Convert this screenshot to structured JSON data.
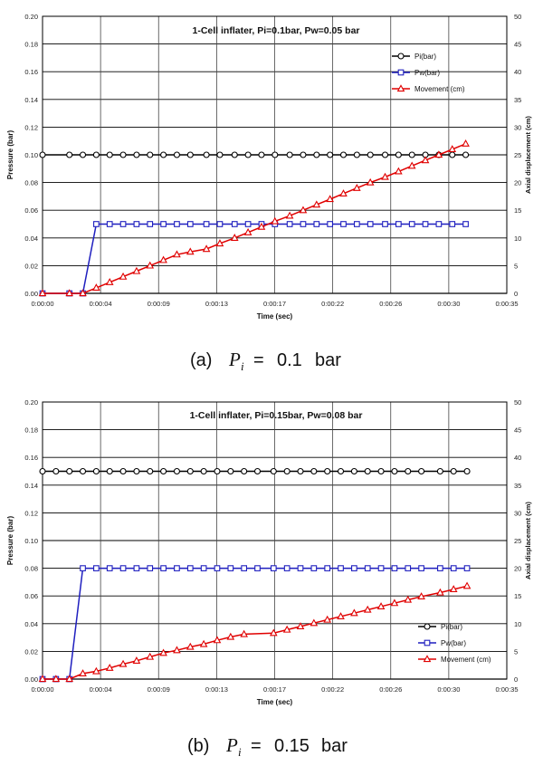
{
  "chart_data": [
    {
      "type": "line",
      "title": "1-Cell inflater, Pi=0.1bar, Pw=0.05 bar",
      "xlabel": "Time (sec)",
      "ylabel": "Pressure (bar)",
      "y2label": "Axial displacement (cm)",
      "x_ticks": [
        "0:00:00",
        "0:00:04",
        "0:00:09",
        "0:00:13",
        "0:00:17",
        "0:00:22",
        "0:00:26",
        "0:00:30",
        "0:00:35"
      ],
      "y_ticks": [
        "0.00",
        "0.02",
        "0.04",
        "0.06",
        "0.08",
        "0.10",
        "0.12",
        "0.14",
        "0.16",
        "0.18",
        "0.20"
      ],
      "y2_ticks": [
        "0",
        "5",
        "10",
        "15",
        "20",
        "25",
        "30",
        "35",
        "40",
        "45",
        "50"
      ],
      "xlim": [
        0,
        34.56
      ],
      "ylim": [
        0,
        0.2
      ],
      "y2lim": [
        0,
        50
      ],
      "grid": true,
      "legend_position": "top-right",
      "series": [
        {
          "name": "Pi(bar)",
          "axis": "left",
          "color": "#000000",
          "marker": "circle",
          "x": [
            0,
            2,
            3,
            4,
            5,
            6,
            7,
            8,
            9,
            10,
            11,
            12.2,
            13.2,
            14.3,
            15.3,
            16.3,
            17.3,
            18.4,
            19.4,
            20.4,
            21.4,
            22.4,
            23.4,
            24.4,
            25.5,
            26.5,
            27.5,
            28.5,
            29.5,
            30.5,
            31.5
          ],
          "y": [
            0.1,
            0.1,
            0.1,
            0.1,
            0.1,
            0.1,
            0.1,
            0.1,
            0.1,
            0.1,
            0.1,
            0.1,
            0.1,
            0.1,
            0.1,
            0.1,
            0.1,
            0.1,
            0.1,
            0.1,
            0.1,
            0.1,
            0.1,
            0.1,
            0.1,
            0.1,
            0.1,
            0.1,
            0.1,
            0.1,
            0.1
          ]
        },
        {
          "name": "Pw(bar)",
          "axis": "left",
          "color": "#1f1fbf",
          "marker": "square",
          "x": [
            0,
            2,
            3,
            4,
            5,
            6,
            7,
            8,
            9,
            10,
            11,
            12.2,
            13.2,
            14.3,
            15.3,
            16.3,
            17.3,
            18.4,
            19.4,
            20.4,
            21.4,
            22.4,
            23.4,
            24.4,
            25.5,
            26.5,
            27.5,
            28.5,
            29.5,
            30.5,
            31.5
          ],
          "y": [
            0,
            0,
            0,
            0.05,
            0.05,
            0.05,
            0.05,
            0.05,
            0.05,
            0.05,
            0.05,
            0.05,
            0.05,
            0.05,
            0.05,
            0.05,
            0.05,
            0.05,
            0.05,
            0.05,
            0.05,
            0.05,
            0.05,
            0.05,
            0.05,
            0.05,
            0.05,
            0.05,
            0.05,
            0.05,
            0.05
          ]
        },
        {
          "name": "Movement (cm)",
          "axis": "right",
          "color": "#e00000",
          "marker": "triangle",
          "x": [
            0,
            2,
            3,
            4,
            5,
            6,
            7,
            8,
            9,
            10,
            11,
            12.2,
            13.2,
            14.3,
            15.3,
            16.3,
            17.3,
            18.4,
            19.4,
            20.4,
            21.4,
            22.4,
            23.4,
            24.4,
            25.5,
            26.5,
            27.5,
            28.5,
            29.5,
            30.5,
            31.5
          ],
          "y": [
            0,
            0,
            0,
            1,
            2,
            3,
            4,
            5,
            6,
            7,
            7.5,
            8,
            9,
            10,
            11,
            12,
            13,
            14,
            15,
            16,
            17,
            18,
            19,
            20,
            21,
            22,
            23,
            24,
            25,
            26,
            27
          ]
        }
      ]
    },
    {
      "type": "line",
      "title": "1-Cell inflater, Pi=0.15bar, Pw=0.08 bar",
      "xlabel": "Time (sec)",
      "ylabel": "Pressure (bar)",
      "y2label": "Axial displacement (cm)",
      "x_ticks": [
        "0:00:00",
        "0:00:04",
        "0:00:09",
        "0:00:13",
        "0:00:17",
        "0:00:22",
        "0:00:26",
        "0:00:30",
        "0:00:35"
      ],
      "y_ticks": [
        "0.00",
        "0.02",
        "0.04",
        "0.06",
        "0.08",
        "0.10",
        "0.12",
        "0.14",
        "0.16",
        "0.18",
        "0.20"
      ],
      "y2_ticks": [
        "0",
        "5",
        "10",
        "15",
        "20",
        "25",
        "30",
        "35",
        "40",
        "45",
        "50"
      ],
      "xlim": [
        0,
        34.56
      ],
      "ylim": [
        0,
        0.2
      ],
      "y2lim": [
        0,
        50
      ],
      "grid": true,
      "legend_position": "right",
      "series": [
        {
          "name": "Pi(bar)",
          "axis": "left",
          "color": "#000000",
          "marker": "circle",
          "x": [
            0,
            1,
            2,
            3,
            4,
            5,
            6,
            7,
            8,
            9,
            10,
            11,
            12,
            13,
            14,
            15,
            16,
            17.2,
            18.2,
            19.2,
            20.2,
            21.2,
            22.2,
            23.2,
            24.2,
            25.2,
            26.2,
            27.2,
            28.2,
            29.6,
            30.6,
            31.6
          ],
          "y": [
            0.15,
            0.15,
            0.15,
            0.15,
            0.15,
            0.15,
            0.15,
            0.15,
            0.15,
            0.15,
            0.15,
            0.15,
            0.15,
            0.15,
            0.15,
            0.15,
            0.15,
            0.15,
            0.15,
            0.15,
            0.15,
            0.15,
            0.15,
            0.15,
            0.15,
            0.15,
            0.15,
            0.15,
            0.15,
            0.15,
            0.15,
            0.15
          ]
        },
        {
          "name": "Pw(bar)",
          "axis": "left",
          "color": "#1f1fbf",
          "marker": "square",
          "x": [
            0,
            1,
            2,
            3,
            4,
            5,
            6,
            7,
            8,
            9,
            10,
            11,
            12,
            13,
            14,
            15,
            16,
            17.2,
            18.2,
            19.2,
            20.2,
            21.2,
            22.2,
            23.2,
            24.2,
            25.2,
            26.2,
            27.2,
            28.2,
            29.6,
            30.6,
            31.6
          ],
          "y": [
            0,
            0,
            0,
            0.08,
            0.08,
            0.08,
            0.08,
            0.08,
            0.08,
            0.08,
            0.08,
            0.08,
            0.08,
            0.08,
            0.08,
            0.08,
            0.08,
            0.08,
            0.08,
            0.08,
            0.08,
            0.08,
            0.08,
            0.08,
            0.08,
            0.08,
            0.08,
            0.08,
            0.08,
            0.08,
            0.08,
            0.08
          ]
        },
        {
          "name": "Movement (cm)",
          "axis": "right",
          "color": "#e00000",
          "marker": "triangle",
          "x": [
            0,
            1,
            2,
            3,
            4,
            5,
            6,
            7,
            8,
            9,
            10,
            11,
            12,
            13,
            14,
            15,
            17.2,
            18.2,
            19.2,
            20.2,
            21.2,
            22.2,
            23.2,
            24.2,
            25.2,
            26.2,
            27.2,
            28.2,
            29.6,
            30.6,
            31.6
          ],
          "y": [
            0,
            0,
            0,
            1,
            1.4,
            2,
            2.7,
            3.3,
            4,
            4.7,
            5.2,
            5.8,
            6.3,
            7,
            7.6,
            8.1,
            8.3,
            8.9,
            9.5,
            10.1,
            10.7,
            11.3,
            11.9,
            12.5,
            13.1,
            13.7,
            14.3,
            14.9,
            15.6,
            16.2,
            16.8
          ]
        }
      ]
    }
  ],
  "captions": [
    {
      "label": "(a)",
      "variable": "P",
      "subscript": "i",
      "equals": "=",
      "value": "0.1",
      "unit": "bar"
    },
    {
      "label": "(b)",
      "variable": "P",
      "subscript": "i",
      "equals": "=",
      "value": "0.15",
      "unit": "bar"
    }
  ]
}
